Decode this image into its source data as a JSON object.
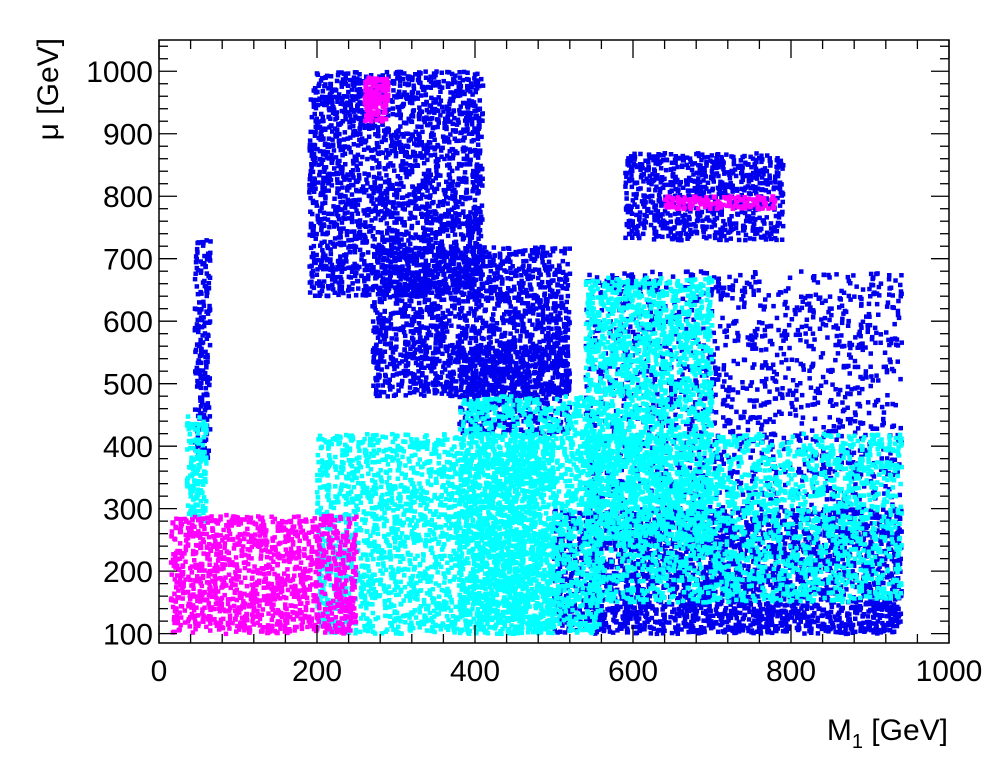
{
  "chart_data": {
    "type": "scatter",
    "title": "",
    "xlabel": "M1 [GeV]",
    "xlabel_main": "M",
    "xlabel_sub": "1",
    "xlabel_unit": " [GeV]",
    "ylabel": "μ [GeV]",
    "xlim": [
      0,
      1000
    ],
    "ylim": [
      85,
      1050
    ],
    "xticks": [
      0,
      200,
      400,
      600,
      800,
      1000
    ],
    "yticks": [
      100,
      200,
      300,
      400,
      500,
      600,
      700,
      800,
      900,
      1000
    ],
    "grid": false,
    "legend": "none",
    "series": [
      {
        "color": "#0000ee",
        "regions": [
          {
            "x": [
              190,
              410
            ],
            "y": [
              640,
              1000
            ]
          },
          {
            "x": [
              270,
              520
            ],
            "y": [
              480,
              720
            ]
          },
          {
            "x": [
              380,
              520
            ],
            "y": [
              420,
              560
            ]
          },
          {
            "x": [
              590,
              790
            ],
            "y": [
              730,
              870
            ]
          },
          {
            "x": [
              540,
              940
            ],
            "y": [
              100,
              680
            ]
          },
          {
            "x": [
              45,
              65
            ],
            "y": [
              380,
              730
            ]
          },
          {
            "x": [
              500,
              940
            ],
            "y": [
              100,
              300
            ]
          }
        ]
      },
      {
        "color": "#00ffff",
        "regions": [
          {
            "x": [
              35,
              60
            ],
            "y": [
              280,
              450
            ]
          },
          {
            "x": [
              200,
              500
            ],
            "y": [
              100,
              420
            ]
          },
          {
            "x": [
              380,
              560
            ],
            "y": [
              100,
              480
            ]
          },
          {
            "x": [
              540,
              700
            ],
            "y": [
              250,
              670
            ]
          },
          {
            "x": [
              550,
              940
            ],
            "y": [
              150,
              420
            ]
          }
        ]
      },
      {
        "color": "#ff00ff",
        "regions": [
          {
            "x": [
              15,
              250
            ],
            "y": [
              100,
              290
            ]
          },
          {
            "x": [
              260,
              290
            ],
            "y": [
              920,
              990
            ]
          },
          {
            "x": [
              640,
              780
            ],
            "y": [
              780,
              800
            ]
          }
        ]
      }
    ]
  }
}
